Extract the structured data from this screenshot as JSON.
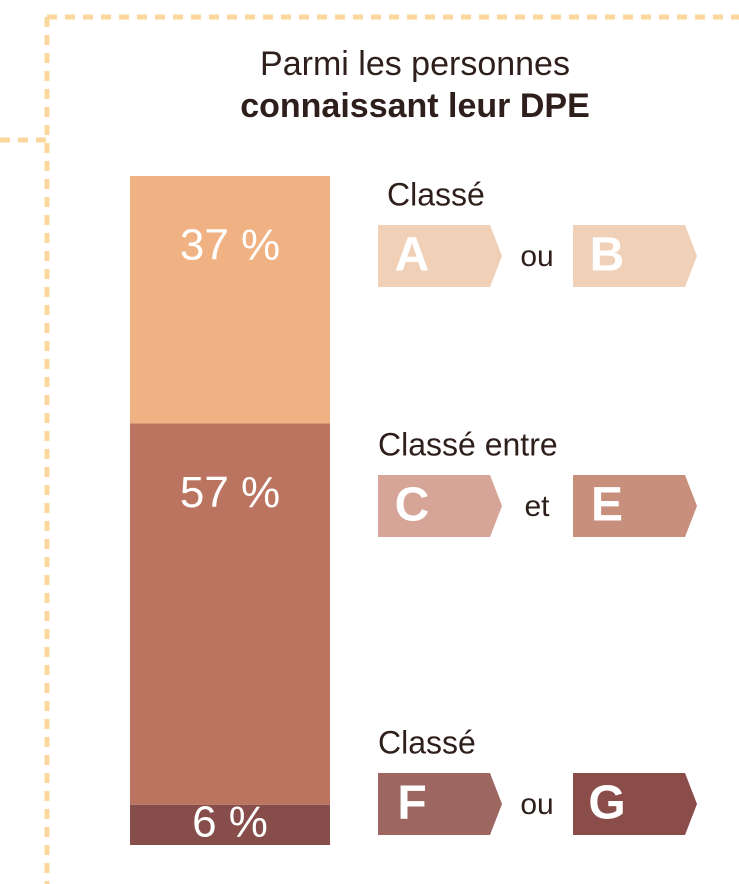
{
  "chart_data": {
    "type": "stacked_bar",
    "title": "Parmi les personnes",
    "subtitle": "connaissant leur DPE",
    "series": [
      {
        "values": [
          37
        ],
        "value_labels": [
          "37 %"
        ],
        "color": "#f0b283",
        "legend": {
          "prefix": "Classé",
          "from": "A",
          "join": "ou",
          "to": "B",
          "from_color": "#f1d0b8",
          "to_color": "#f1d0b8"
        }
      },
      {
        "values": [
          57
        ],
        "value_labels": [
          "57 %"
        ],
        "color": "#bb7460",
        "legend": {
          "prefix": "Classé entre",
          "from": "C",
          "join": "et",
          "to": "E",
          "from_color": "#d6a597",
          "to_color": "#c98f7d"
        }
      },
      {
        "values": [
          6
        ],
        "value_labels": [
          "6 %"
        ],
        "color": "#874d4a",
        "legend": {
          "prefix": "Classé",
          "from": "F",
          "join": "ou",
          "to": "G",
          "from_color": "#9e6660",
          "to_color": "#8a4d4a"
        }
      }
    ]
  }
}
